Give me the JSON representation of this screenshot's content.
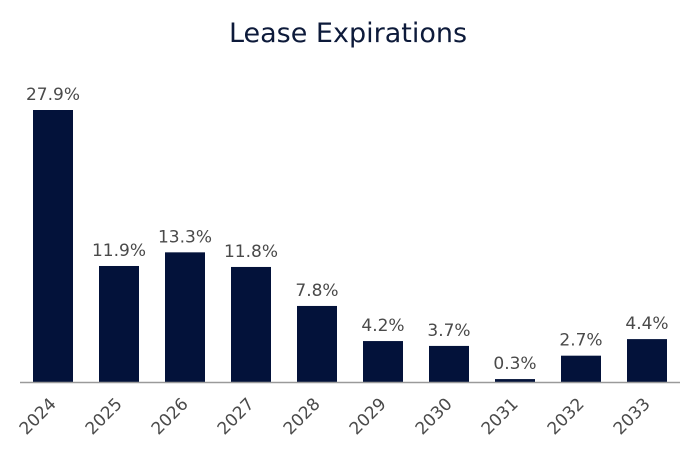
{
  "chart_data": {
    "type": "bar",
    "title": "Lease Expirations",
    "xlabel": "",
    "ylabel": "",
    "categories": [
      "2024",
      "2025",
      "2026",
      "2027",
      "2028",
      "2029",
      "2030",
      "2031",
      "2032",
      "2033"
    ],
    "values": [
      27.9,
      11.9,
      13.3,
      11.8,
      7.8,
      4.2,
      3.7,
      0.3,
      2.7,
      4.4
    ],
    "value_labels": [
      "27.9%",
      "11.9%",
      "13.3%",
      "11.8%",
      "7.8%",
      "4.2%",
      "3.7%",
      "0.3%",
      "2.7%",
      "4.4%"
    ],
    "ylim": [
      0,
      30
    ],
    "grid": false,
    "legend": "none",
    "bar_color": "#03123a",
    "axis_color": "#9a9a9a"
  }
}
